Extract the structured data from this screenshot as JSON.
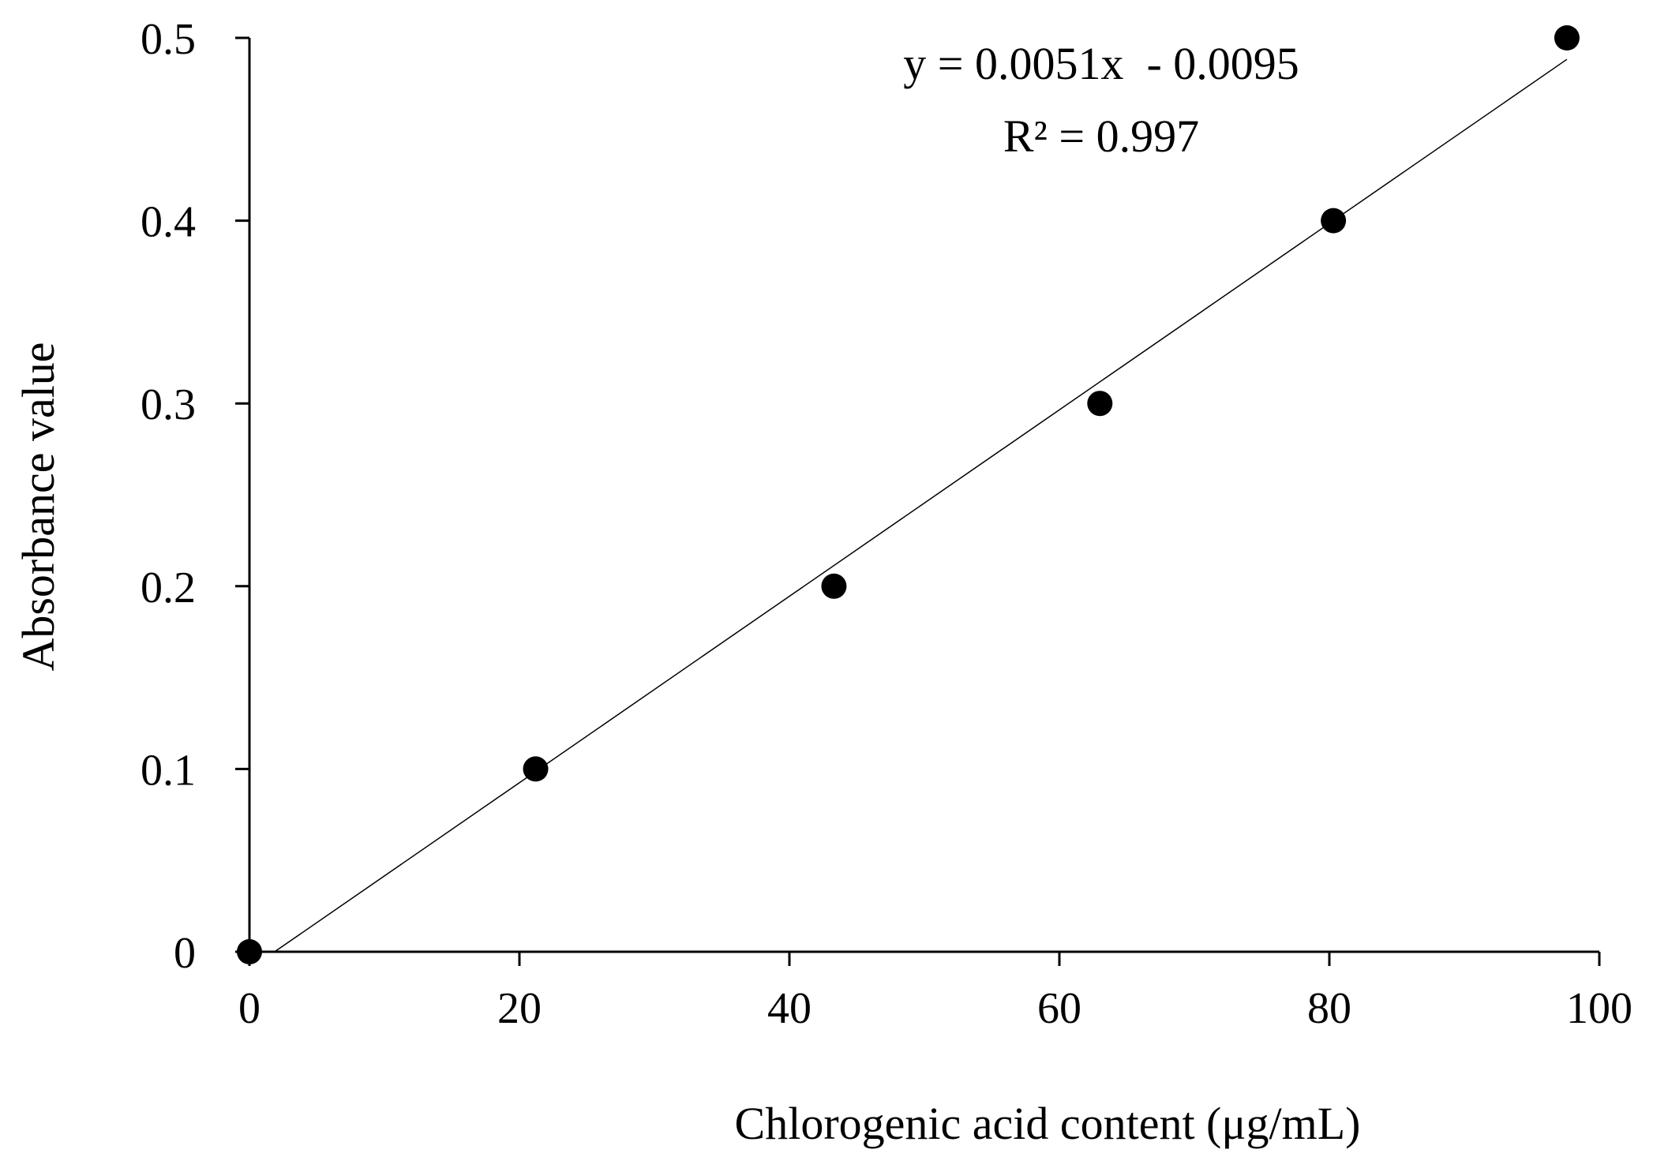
{
  "chart_data": {
    "type": "scatter",
    "xlabel": "Chlorogenic acid content (μg/mL)",
    "ylabel": "Absorbance value",
    "xlim": [
      0,
      100
    ],
    "ylim": [
      0,
      0.5
    ],
    "x_ticks": [
      "0",
      "20",
      "40",
      "60",
      "80",
      "100"
    ],
    "y_ticks": [
      "0",
      "0.1",
      "0.2",
      "0.3",
      "0.4",
      "0.5"
    ],
    "grid": false,
    "series": [
      {
        "points": [
          {
            "x": 0,
            "y": 0
          },
          {
            "x": 21.2,
            "y": 0.1
          },
          {
            "x": 43.3,
            "y": 0.2
          },
          {
            "x": 63,
            "y": 0.3
          },
          {
            "x": 80.3,
            "y": 0.4
          },
          {
            "x": 97.6,
            "y": 0.5
          }
        ]
      }
    ],
    "trendline": {
      "slope": 0.0051,
      "intercept": -0.0095,
      "x_range": [
        1.86,
        97.6
      ]
    },
    "annotations": {
      "equation": "y = 0.0051x  - 0.0095",
      "r_squared": "R² = 0.997"
    },
    "colors": {
      "points": "#000000",
      "line": "#000000",
      "axes": "#000000"
    }
  }
}
